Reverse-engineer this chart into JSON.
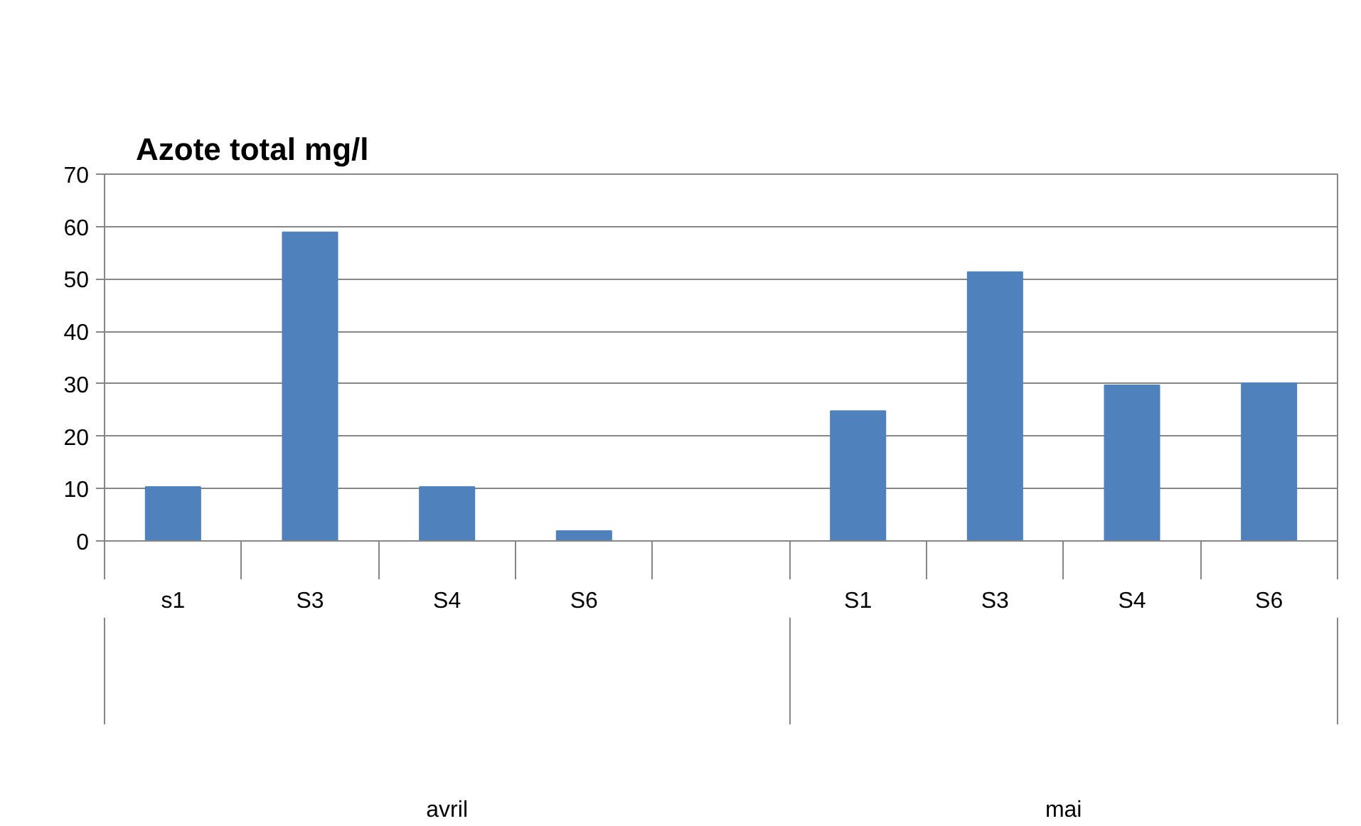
{
  "chart_data": {
    "type": "bar",
    "title": "Azote total mg/l",
    "categories": [
      "s1",
      "S3",
      "S4",
      "S6",
      null,
      "S1",
      "S3",
      "S4",
      "S6"
    ],
    "values": [
      10.3,
      58.9,
      10.3,
      1.9,
      null,
      24.8,
      51.3,
      29.7,
      30.1
    ],
    "color": "#4f81bd",
    "ylim": [
      0,
      70
    ],
    "yticks": [
      0,
      10,
      20,
      30,
      40,
      50,
      60,
      70
    ],
    "grid": "y",
    "annotations": [
      "avril",
      "mai"
    ]
  }
}
